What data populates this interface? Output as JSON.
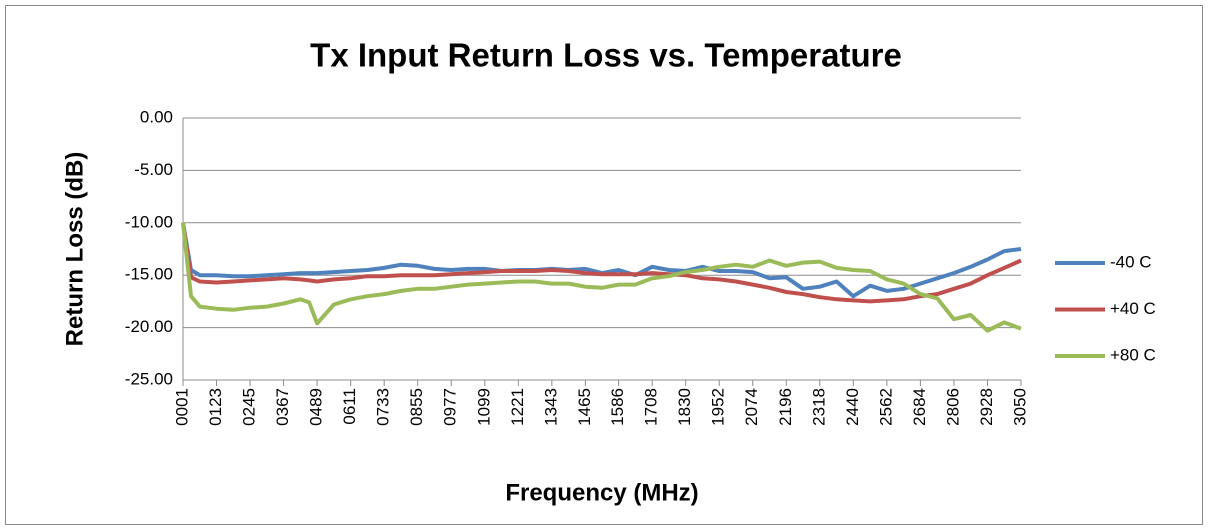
{
  "chart_data": {
    "type": "line",
    "title": "Tx Input Return Loss vs. Temperature",
    "xlabel": "Frequency (MHz)",
    "ylabel": "Return Loss (dB)",
    "x": [
      1,
      30,
      62,
      123,
      184,
      245,
      306,
      367,
      428,
      460,
      489,
      550,
      611,
      672,
      733,
      794,
      855,
      916,
      977,
      1038,
      1099,
      1160,
      1221,
      1282,
      1343,
      1404,
      1465,
      1526,
      1586,
      1647,
      1708,
      1769,
      1830,
      1891,
      1952,
      2013,
      2074,
      2135,
      2196,
      2257,
      2318,
      2379,
      2440,
      2501,
      2562,
      2623,
      2684,
      2745,
      2806,
      2867,
      2928,
      2989,
      3050
    ],
    "series": [
      {
        "name": "-40 C",
        "color": "#4f81bd",
        "values": [
          -10,
          -14.5,
          -15,
          -15,
          -15.1,
          -15.1,
          -15,
          -14.9,
          -14.8,
          -14.8,
          -14.8,
          -14.7,
          -14.6,
          -14.5,
          -14.3,
          -14,
          -14.1,
          -14.4,
          -14.5,
          -14.4,
          -14.4,
          -14.6,
          -14.5,
          -14.5,
          -14.4,
          -14.5,
          -14.4,
          -14.8,
          -14.5,
          -15,
          -14.2,
          -14.5,
          -14.6,
          -14.2,
          -14.6,
          -14.6,
          -14.7,
          -15.3,
          -15.2,
          -16.3,
          -16.1,
          -15.6,
          -17,
          -16,
          -16.5,
          -16.3,
          -15.8,
          -15.3,
          -14.8,
          -14.2,
          -13.5,
          -12.7,
          -12.5
        ]
      },
      {
        "name": "+40 C",
        "color": "#c0504d",
        "values": [
          -10,
          -15.2,
          -15.6,
          -15.7,
          -15.6,
          -15.5,
          -15.4,
          -15.3,
          -15.4,
          -15.5,
          -15.6,
          -15.4,
          -15.3,
          -15.1,
          -15.1,
          -15,
          -15,
          -15,
          -14.9,
          -14.8,
          -14.7,
          -14.6,
          -14.6,
          -14.6,
          -14.5,
          -14.6,
          -14.8,
          -14.9,
          -14.9,
          -14.9,
          -14.8,
          -14.9,
          -15,
          -15.3,
          -15.4,
          -15.6,
          -15.9,
          -16.2,
          -16.6,
          -16.8,
          -17.1,
          -17.3,
          -17.4,
          -17.5,
          -17.4,
          -17.3,
          -17,
          -16.8,
          -16.3,
          -15.8,
          -15,
          -14.3,
          -13.6
        ]
      },
      {
        "name": "+80 C",
        "color": "#9bbb59",
        "values": [
          -10,
          -17,
          -18,
          -18.2,
          -18.3,
          -18.1,
          -18,
          -17.7,
          -17.3,
          -17.6,
          -19.6,
          -17.8,
          -17.3,
          -17,
          -16.8,
          -16.5,
          -16.3,
          -16.3,
          -16.1,
          -15.9,
          -15.8,
          -15.7,
          -15.6,
          -15.6,
          -15.8,
          -15.8,
          -16.1,
          -16.2,
          -15.9,
          -15.9,
          -15.3,
          -15.1,
          -14.7,
          -14.5,
          -14.2,
          -14,
          -14.2,
          -13.6,
          -14.1,
          -13.8,
          -13.7,
          -14.3,
          -14.5,
          -14.6,
          -15.4,
          -15.8,
          -16.8,
          -17.2,
          -19.2,
          -18.8,
          -20.3,
          -19.5,
          -20.1
        ]
      }
    ],
    "xlim": [
      1,
      3050
    ],
    "xticks": [
      {
        "value": 1,
        "label": "0001"
      },
      {
        "value": 123,
        "label": "0123"
      },
      {
        "value": 245,
        "label": "0245"
      },
      {
        "value": 367,
        "label": "0367"
      },
      {
        "value": 489,
        "label": "0489"
      },
      {
        "value": 611,
        "label": "0611"
      },
      {
        "value": 733,
        "label": "0733"
      },
      {
        "value": 855,
        "label": "0855"
      },
      {
        "value": 977,
        "label": "0977"
      },
      1099,
      1221,
      1343,
      1465,
      1586,
      1708,
      1830,
      1952,
      2074,
      2196,
      2318,
      2440,
      2562,
      2684,
      2806,
      2928,
      3050
    ],
    "ylim": [
      -25,
      0
    ],
    "yticks": [
      {
        "value": -25,
        "label": "-25.00"
      },
      {
        "value": -20,
        "label": "-20.00"
      },
      {
        "value": -15,
        "label": "-15.00"
      },
      {
        "value": -10,
        "label": "-10.00"
      },
      {
        "value": -5,
        "label": "-5.00"
      },
      {
        "value": 0,
        "label": "0.00"
      }
    ],
    "grid": true,
    "legend": "right"
  }
}
